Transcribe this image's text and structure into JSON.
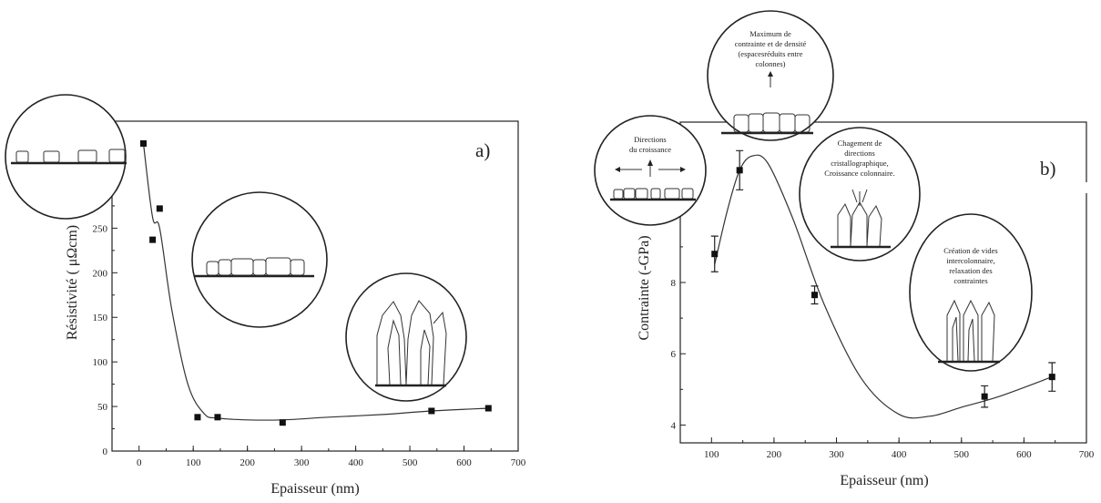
{
  "chart_data": [
    {
      "type": "scatter",
      "panel_tag": "a)",
      "xlabel": "Epaisseur (nm)",
      "ylabel": "Résistivité ( μΩcm)",
      "xlim": [
        -50,
        700
      ],
      "ylim": [
        0,
        370
      ],
      "xticks": [
        0,
        100,
        200,
        300,
        400,
        500,
        600,
        700
      ],
      "yticks": [
        0,
        50,
        100,
        150,
        200,
        250
      ],
      "ytick_labels": [
        "0",
        "50",
        "100",
        "150",
        "200",
        "250"
      ],
      "series": [
        {
          "x": [
            8,
            25,
            38,
            108,
            145,
            265,
            540,
            645
          ],
          "y": [
            345,
            237,
            272,
            38,
            38,
            32,
            45,
            48
          ]
        }
      ],
      "curve": {
        "x": [
          8,
          25,
          38,
          60,
          90,
          120,
          145,
          200,
          265,
          350,
          450,
          540,
          645
        ],
        "y": [
          345,
          262,
          250,
          160,
          75,
          42,
          37,
          35,
          35,
          38,
          41,
          45,
          48
        ]
      },
      "annotations": []
    },
    {
      "type": "scatter",
      "panel_tag": "b)",
      "xlabel": "Epaisseur (nm)",
      "ylabel": "Contrainte (-GPa)",
      "xlim": [
        50,
        700
      ],
      "ylim": [
        3.5,
        12.5
      ],
      "xticks": [
        100,
        200,
        300,
        400,
        500,
        600,
        700
      ],
      "yticks": [
        4,
        6,
        8
      ],
      "series": [
        {
          "x": [
            105,
            145,
            265,
            537,
            645
          ],
          "y": [
            8.8,
            11.15,
            7.65,
            4.8,
            5.35
          ],
          "yerr": [
            0.5,
            0.55,
            0.25,
            0.3,
            0.4
          ]
        }
      ],
      "curve": {
        "x": [
          105,
          125,
          145,
          165,
          190,
          230,
          280,
          340,
          400,
          450,
          500,
          560,
          645
        ],
        "y": [
          8.5,
          10.0,
          11.15,
          11.55,
          11.35,
          9.8,
          7.4,
          5.3,
          4.3,
          4.25,
          4.5,
          4.8,
          5.35
        ]
      },
      "annotations": [
        [
          "Maximum de",
          "contrainte et de densité",
          "(espacesréduits entre",
          "colonnes)"
        ],
        [
          "Directions",
          "du croissance"
        ],
        [
          "Chagement de",
          "directions",
          "cristallographique,",
          "Croissance colonnaire."
        ],
        [
          "Création de vides",
          "intercolonnaire,",
          "relaxation des",
          "contraintes"
        ]
      ]
    }
  ]
}
